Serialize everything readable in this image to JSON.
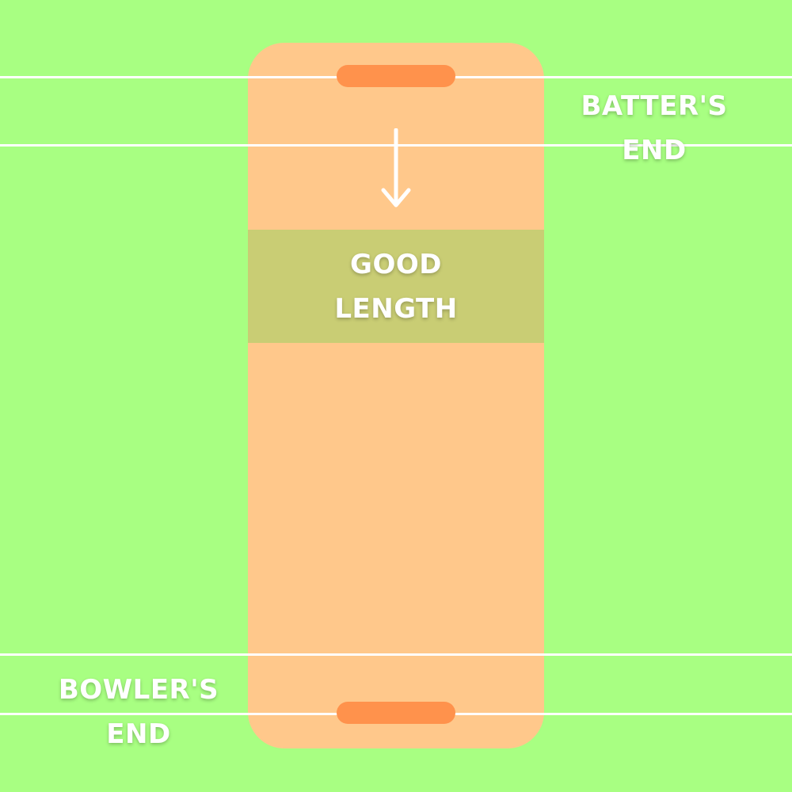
{
  "diagram": {
    "good_length": {
      "line1": "GOOD",
      "line2": "LENGTH"
    },
    "batters_end": {
      "line1": "BATTER'S",
      "line2": "END"
    },
    "bowlers_end": {
      "line1": "BOWLER'S",
      "line2": "END"
    }
  },
  "colors": {
    "grass": "#A8FF82",
    "pitch": "#FFC88B",
    "good_length_zone": "#C9CD74",
    "stumps": "#FF924C",
    "lines_and_text": "#FFFFFF"
  }
}
